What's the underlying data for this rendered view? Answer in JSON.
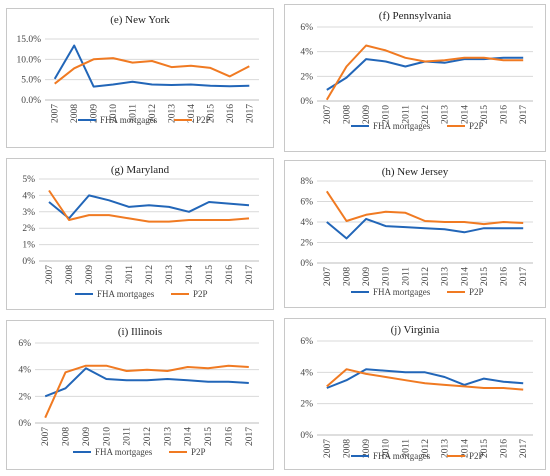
{
  "colors": {
    "fha": "#2266b8",
    "p2p": "#f07a22",
    "grid": "#d9d9d9",
    "axis": "#bdbdbd"
  },
  "legend": {
    "fha_label": "FHA mortgages",
    "p2p_label": "P2P"
  },
  "chart_data": [
    {
      "type": "line",
      "title": "(e) New York",
      "x": [
        "2007",
        "2008",
        "2009",
        "2010",
        "2011",
        "2012",
        "2013",
        "2014",
        "2015",
        "2016",
        "2017"
      ],
      "yticks": [
        "0.0%",
        "5.0%",
        "10.0%",
        "15.0%"
      ],
      "ylim": [
        0,
        15
      ],
      "grid": true,
      "legend_placement": "bottom",
      "series": [
        {
          "name": "FHA mortgages",
          "values": [
            5.2,
            13.4,
            3.3,
            3.8,
            4.5,
            3.8,
            3.7,
            3.8,
            3.5,
            3.4,
            3.5
          ]
        },
        {
          "name": "P2P",
          "values": [
            4.0,
            7.8,
            10.0,
            10.3,
            9.2,
            9.6,
            8.1,
            8.4,
            7.9,
            5.8,
            8.3
          ]
        }
      ]
    },
    {
      "type": "line",
      "title": "(f) Pennsylvania",
      "x": [
        "2007",
        "2008",
        "2009",
        "2010",
        "2011",
        "2012",
        "2013",
        "2014",
        "2015",
        "2016",
        "2017"
      ],
      "yticks": [
        "0%",
        "2%",
        "4%",
        "6%"
      ],
      "ylim": [
        0,
        6
      ],
      "grid": true,
      "legend_placement": "bottom",
      "series": [
        {
          "name": "FHA mortgages",
          "values": [
            0.9,
            1.9,
            3.4,
            3.2,
            2.8,
            3.2,
            3.1,
            3.4,
            3.4,
            3.5,
            3.5
          ]
        },
        {
          "name": "P2P",
          "values": [
            0.1,
            2.8,
            4.5,
            4.1,
            3.5,
            3.2,
            3.3,
            3.5,
            3.5,
            3.3,
            3.3
          ]
        }
      ]
    },
    {
      "type": "line",
      "title": "(g) Maryland",
      "x": [
        "2007",
        "2008",
        "2009",
        "2010",
        "2011",
        "2012",
        "2013",
        "2014",
        "2015",
        "2016",
        "2017"
      ],
      "yticks": [
        "0%",
        "1%",
        "2%",
        "3%",
        "4%",
        "5%"
      ],
      "ylim": [
        0,
        5
      ],
      "grid": true,
      "legend_placement": "bottom",
      "series": [
        {
          "name": "FHA mortgages",
          "values": [
            3.6,
            2.6,
            4.0,
            3.7,
            3.3,
            3.4,
            3.3,
            3.0,
            3.6,
            3.5,
            3.4
          ]
        },
        {
          "name": "P2P",
          "values": [
            4.3,
            2.5,
            2.8,
            2.8,
            2.6,
            2.4,
            2.4,
            2.5,
            2.5,
            2.5,
            2.6
          ]
        }
      ]
    },
    {
      "type": "line",
      "title": "(h) New Jersey",
      "x": [
        "2007",
        "2008",
        "2009",
        "2010",
        "2011",
        "2012",
        "2013",
        "2014",
        "2015",
        "2016",
        "2017"
      ],
      "yticks": [
        "0%",
        "2%",
        "4%",
        "6%",
        "8%"
      ],
      "ylim": [
        0,
        8
      ],
      "grid": true,
      "legend_placement": "bottom",
      "series": [
        {
          "name": "FHA mortgages",
          "values": [
            4.0,
            2.4,
            4.3,
            3.6,
            3.5,
            3.4,
            3.3,
            3.0,
            3.4,
            3.4,
            3.4
          ]
        },
        {
          "name": "P2P",
          "values": [
            7.0,
            4.1,
            4.7,
            5.0,
            4.9,
            4.1,
            4.0,
            4.0,
            3.8,
            4.0,
            3.9
          ]
        }
      ]
    },
    {
      "type": "line",
      "title": "(i) Illinois",
      "x": [
        "2007",
        "2008",
        "2009",
        "2010",
        "2011",
        "2012",
        "2013",
        "2014",
        "2015",
        "2016",
        "2017"
      ],
      "yticks": [
        "0%",
        "2%",
        "4%",
        "6%"
      ],
      "ylim": [
        0,
        6
      ],
      "grid": true,
      "legend_placement": "bottom",
      "series": [
        {
          "name": "FHA mortgages",
          "values": [
            2.0,
            2.6,
            4.1,
            3.3,
            3.2,
            3.2,
            3.3,
            3.2,
            3.1,
            3.1,
            3.0
          ]
        },
        {
          "name": "P2P",
          "values": [
            0.4,
            3.8,
            4.3,
            4.3,
            3.9,
            4.0,
            3.9,
            4.2,
            4.1,
            4.3,
            4.2
          ]
        }
      ]
    },
    {
      "type": "line",
      "title": "(j) Virginia",
      "x": [
        "2007",
        "2008",
        "2009",
        "2010",
        "2011",
        "2012",
        "2013",
        "2014",
        "2015",
        "2016",
        "2017"
      ],
      "yticks": [
        "0%",
        "2%",
        "4%",
        "6%"
      ],
      "ylim": [
        0,
        6
      ],
      "grid": true,
      "legend_placement": "bottom",
      "series": [
        {
          "name": "FHA mortgages",
          "values": [
            3.0,
            3.5,
            4.2,
            4.1,
            4.0,
            4.0,
            3.7,
            3.2,
            3.6,
            3.4,
            3.3
          ]
        },
        {
          "name": "P2P",
          "values": [
            3.1,
            4.2,
            3.9,
            3.7,
            3.5,
            3.3,
            3.2,
            3.1,
            3.0,
            3.0,
            2.9
          ]
        }
      ]
    }
  ]
}
